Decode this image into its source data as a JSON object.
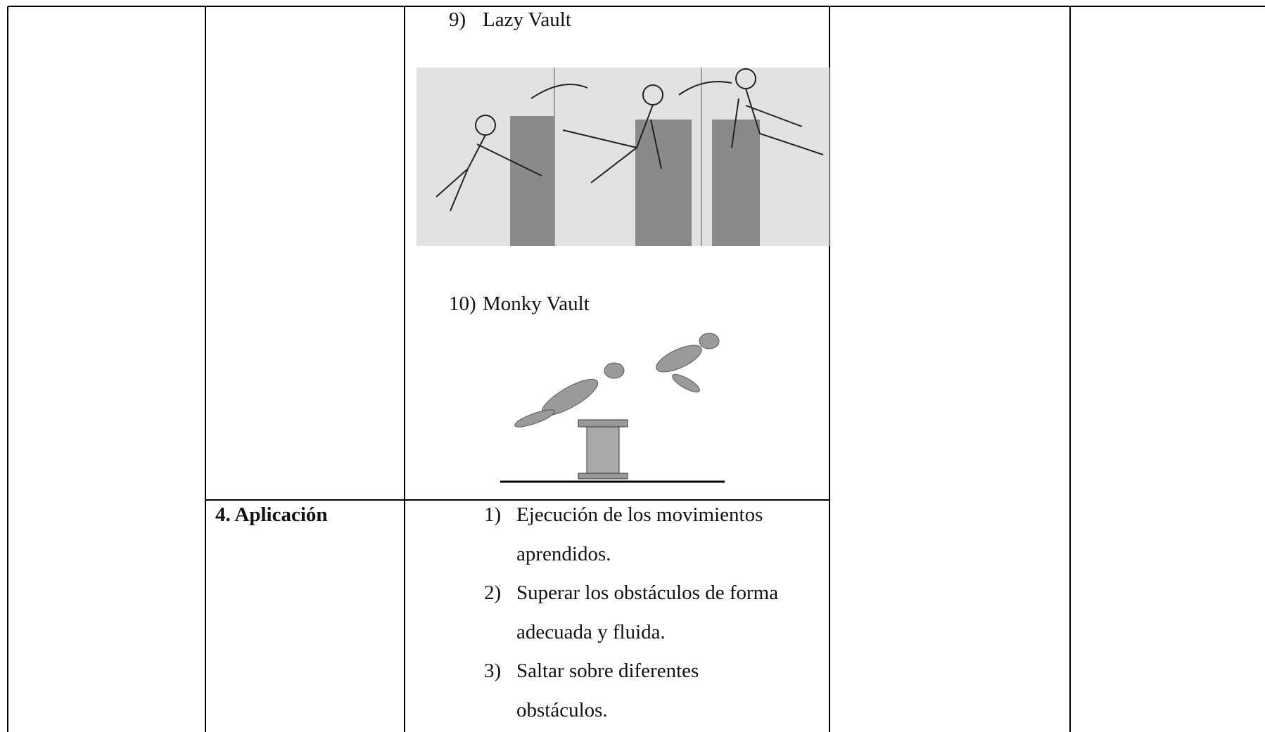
{
  "table": {
    "rows": [
      {
        "items": [
          {
            "number": "9)",
            "label": "Lazy Vault"
          },
          {
            "number": "10)",
            "label": "Monky Vault"
          }
        ]
      },
      {
        "heading": "4. Aplicación",
        "items": [
          {
            "number": "1)",
            "lines": [
              "Ejecución de los movimientos",
              "aprendidos."
            ]
          },
          {
            "number": "2)",
            "lines": [
              "Superar los obstáculos de forma",
              "adecuada y fluida."
            ]
          },
          {
            "number": "3)",
            "lines": [
              "Saltar sobre diferentes",
              "obstáculos."
            ]
          }
        ]
      }
    ]
  }
}
